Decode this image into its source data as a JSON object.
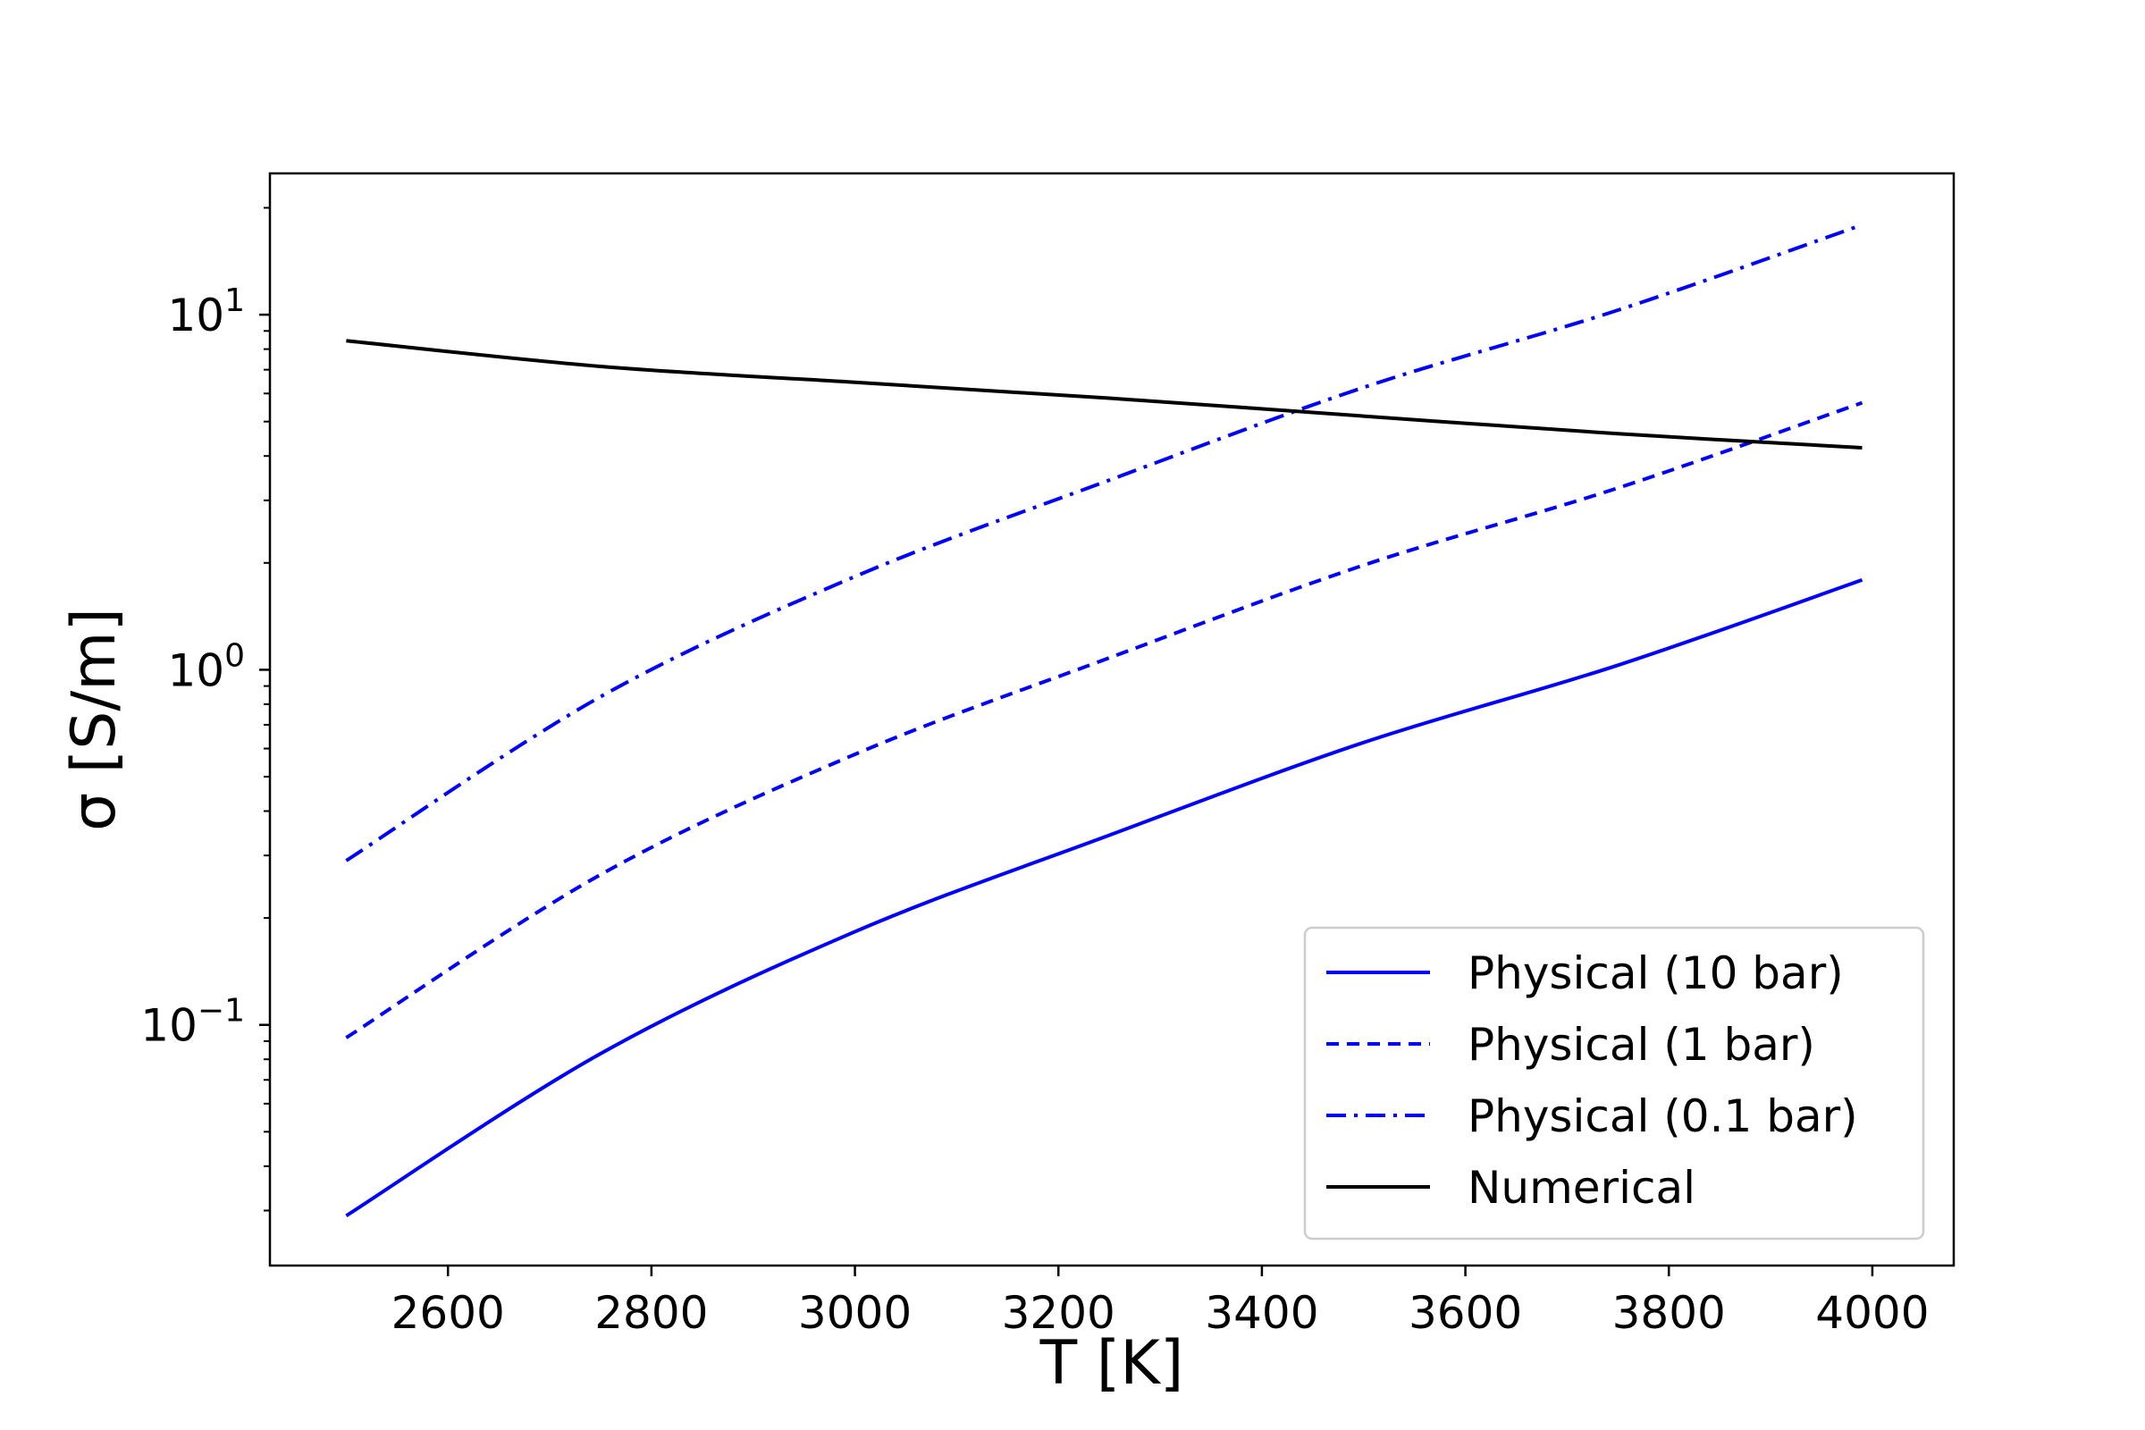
{
  "chart_data": {
    "type": "line",
    "title": "",
    "xlabel": "T [K]",
    "ylabel": "σ [S/m]",
    "xlim": [
      2425,
      4080
    ],
    "ylim": [
      0.021,
      25
    ],
    "yscale": "log",
    "grid": false,
    "legend_position": "bottom-right",
    "x_ticks": [
      2600,
      2800,
      3000,
      3200,
      3400,
      3600,
      3800,
      4000
    ],
    "y_ticks": [
      {
        "value": 0.1,
        "base": "10",
        "exponent": "−1"
      },
      {
        "value": 1,
        "base": "10",
        "exponent": "0"
      },
      {
        "value": 10,
        "base": "10",
        "exponent": "1"
      }
    ],
    "x": [
      2500,
      2750,
      3000,
      3250,
      3500,
      3750,
      3990
    ],
    "series": [
      {
        "name": "Physical (10 bar)",
        "style": "solid",
        "color": "#0000ff",
        "values": [
          0.029,
          0.083,
          0.183,
          0.342,
          0.624,
          1.03,
          1.79
        ]
      },
      {
        "name": "Physical (1 bar)",
        "style": "dashed",
        "color": "#0000ff",
        "values": [
          0.092,
          0.265,
          0.578,
          1.08,
          1.97,
          3.25,
          5.65
        ]
      },
      {
        "name": "Physical (0.1 bar)",
        "style": "dashdot",
        "color": "#0000ff",
        "values": [
          0.29,
          0.84,
          1.83,
          3.42,
          6.24,
          10.3,
          17.9
        ]
      },
      {
        "name": "Numerical",
        "style": "solid",
        "color": "#000000",
        "values": [
          8.45,
          7.15,
          6.45,
          5.82,
          5.18,
          4.62,
          4.22
        ]
      }
    ]
  }
}
